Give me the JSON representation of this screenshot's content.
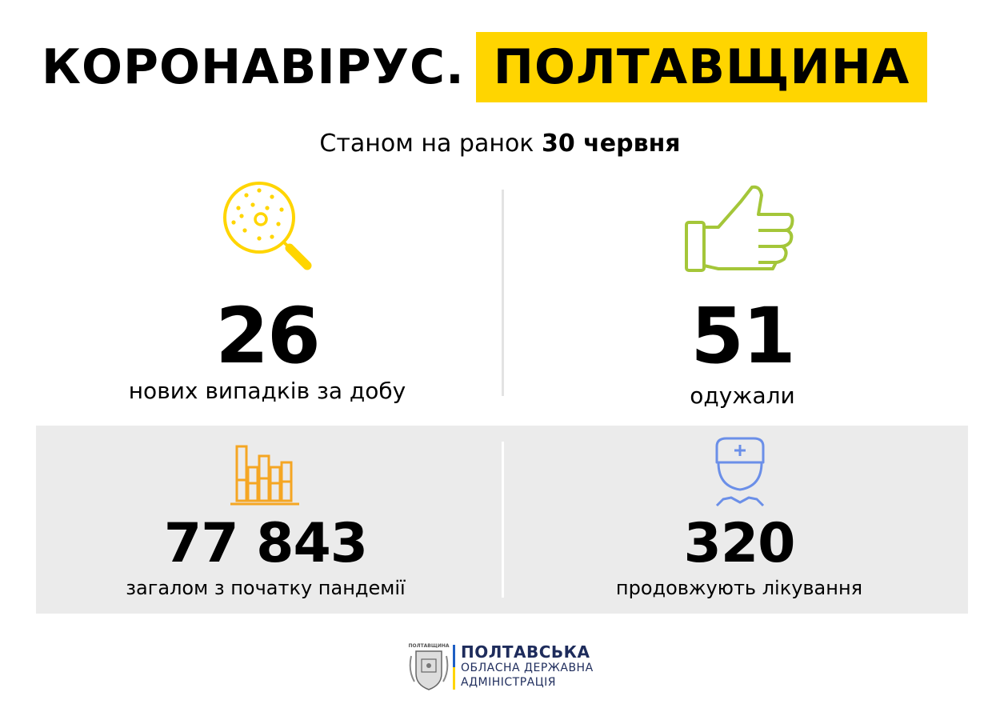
{
  "header": {
    "title_left": "КОРОНАВІРУС.",
    "title_right": "ПОЛТАВЩИНА",
    "accent_color": "#ffd500"
  },
  "subtitle": {
    "prefix": "Станом на ранок",
    "date": "30 червня"
  },
  "stats": {
    "new_cases": {
      "value": "26",
      "label": "нових випадків за добу",
      "icon": "magnifier-virus-icon",
      "color": "#ffd500"
    },
    "recovered": {
      "value": "51",
      "label": "одужали",
      "icon": "thumbs-up-icon",
      "color": "#a4c639"
    },
    "total": {
      "value": "77 843",
      "label": "загалом з початку пандемії",
      "icon": "bar-chart-icon",
      "color": "#f5a623"
    },
    "treatment": {
      "value": "320",
      "label": "продовжують лікування",
      "icon": "doctor-icon",
      "color": "#6b8fe8"
    }
  },
  "footer": {
    "line1": "ПОЛТАВСЬКА",
    "line2": "ОБЛАСНА ДЕРЖАВНА",
    "line3": "АДМІНІСТРАЦІЯ",
    "logo_caption": "ПОЛТАВЩИНА",
    "flag_blue": "#1e5fc4",
    "flag_yellow": "#ffd500"
  }
}
